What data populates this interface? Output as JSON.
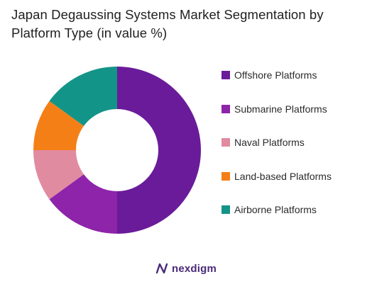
{
  "chart_data": {
    "type": "pie",
    "title": "Japan Degaussing Systems Market Segmentation by Platform Type (in value %)",
    "categories": [
      "Offshore Platforms",
      "Submarine Platforms",
      "Naval Platforms",
      "Land-based Platforms",
      "Airborne Platforms"
    ],
    "values": [
      50,
      15,
      10,
      10,
      15
    ],
    "colors": [
      "#6a1b9a",
      "#8e24aa",
      "#e08ba0",
      "#f57f17",
      "#129588"
    ],
    "donut": true,
    "legend": "right"
  },
  "brand": {
    "name": "nexdigm",
    "color": "#4a2a7a"
  }
}
